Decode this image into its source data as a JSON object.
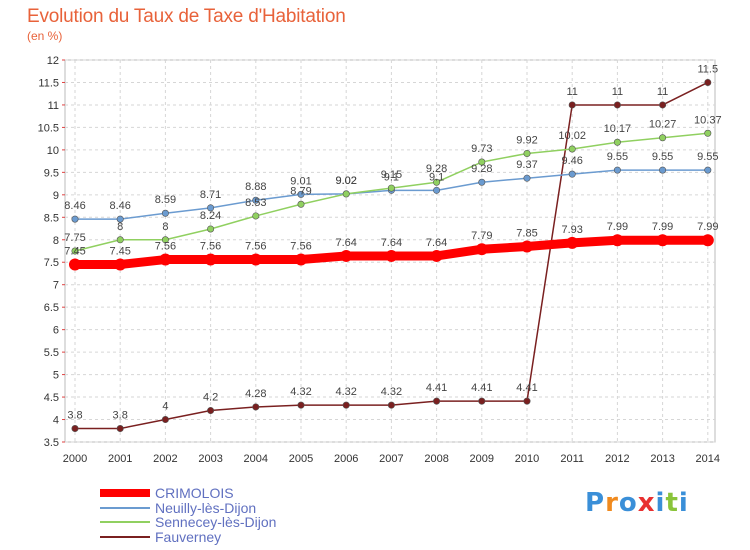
{
  "chart_data": {
    "type": "line",
    "title": "Evolution du Taux de Taxe d'Habitation",
    "subtitle": "(en %)",
    "x": [
      "2000",
      "2001",
      "2002",
      "2003",
      "2004",
      "2005",
      "2006",
      "2007",
      "2008",
      "2009",
      "2010",
      "2011",
      "2012",
      "2013",
      "2014"
    ],
    "ylim": [
      3.5,
      12
    ],
    "yticks": [
      "3.5",
      "4",
      "4.5",
      "5",
      "5.5",
      "6",
      "6.5",
      "7",
      "7.5",
      "8",
      "8.5",
      "9",
      "9.5",
      "10",
      "10.5",
      "11",
      "11.5",
      "12"
    ],
    "grid": true,
    "legend_position": "bottom-left",
    "series": [
      {
        "name": "CRIMOLOIS",
        "color": "#ff0000",
        "values": [
          7.45,
          7.45,
          7.56,
          7.56,
          7.56,
          7.56,
          7.64,
          7.64,
          7.64,
          7.79,
          7.85,
          7.93,
          7.99,
          7.99,
          7.99
        ],
        "labels": [
          "7.45",
          "7.45",
          "7.56",
          "7.56",
          "7.56",
          "7.56",
          "7.64",
          "7.64",
          "7.64",
          "7.79",
          "7.85",
          "7.93",
          "7.99",
          "7.99",
          "7.99"
        ]
      },
      {
        "name": "Neuilly-lès-Dijon",
        "color": "#6b9bd0",
        "values": [
          8.46,
          8.46,
          8.59,
          8.71,
          8.88,
          9.01,
          9.02,
          9.1,
          9.1,
          9.28,
          9.37,
          9.46,
          9.55,
          9.55,
          9.55
        ],
        "labels": [
          "8.46",
          "8.46",
          "8.59",
          "8.71",
          "8.88",
          "9.01",
          "9.02",
          "9.1",
          "9.1",
          "9.28",
          "9.37",
          "9.46",
          "9.55",
          "9.55",
          "9.55"
        ]
      },
      {
        "name": "Sennecey-lès-Dijon",
        "color": "#90d060",
        "values": [
          7.75,
          8,
          8,
          8.24,
          8.53,
          8.79,
          9.02,
          9.15,
          9.28,
          9.73,
          9.92,
          10.02,
          10.17,
          10.27,
          10.37
        ],
        "labels": [
          "7.75",
          "8",
          "8",
          "8.24",
          "8.53",
          "8.79",
          "9.02",
          "9.15",
          "9.28",
          "9.73",
          "9.92",
          "10.02",
          "10.17",
          "10.27",
          "10.37"
        ]
      },
      {
        "name": "Fauverney",
        "color": "#7a2020",
        "values": [
          3.8,
          3.8,
          4,
          4.2,
          4.28,
          4.32,
          4.32,
          4.32,
          4.41,
          4.41,
          4.41,
          11,
          11,
          11,
          11.5
        ],
        "labels": [
          "3.8",
          "3.8",
          "4",
          "4.2",
          "4.28",
          "4.32",
          "4.32",
          "4.32",
          "4.41",
          "4.41",
          "4.41",
          "11",
          "11",
          "11",
          "11.5"
        ]
      }
    ]
  },
  "logo": {
    "letters": [
      "P",
      "r",
      "o",
      "x",
      "i",
      "t",
      "i"
    ],
    "colors": [
      "#3a8fd8",
      "#f08a1e",
      "#3a8fd8",
      "#e83030",
      "#3a8fd8",
      "#8ac43a",
      "#3a8fd8"
    ]
  }
}
